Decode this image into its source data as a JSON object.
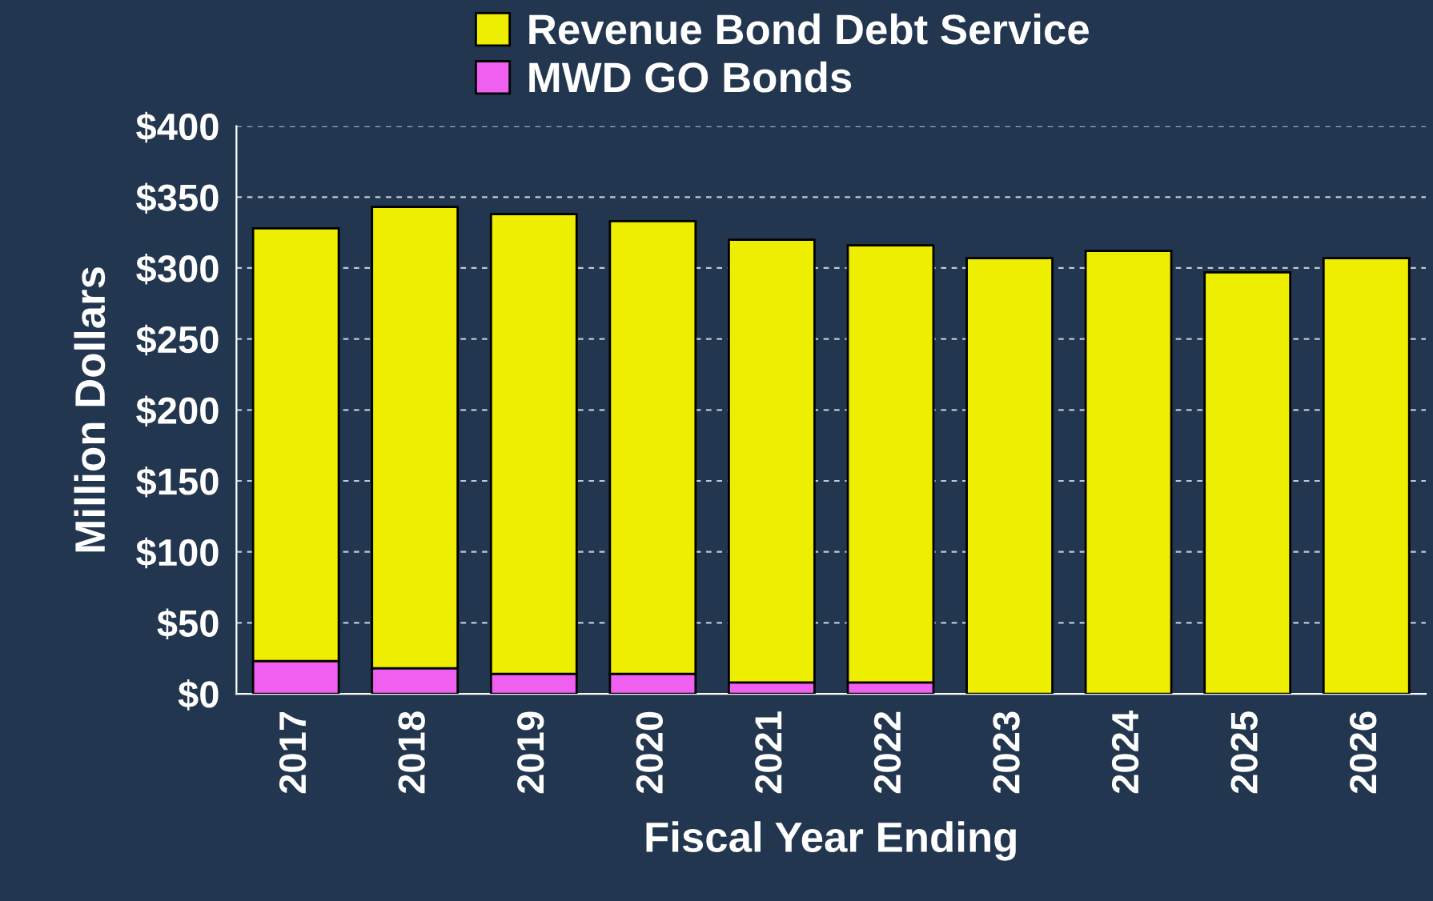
{
  "chart_data": {
    "type": "bar",
    "stacked": true,
    "xlabel": "Fiscal Year Ending",
    "ylabel": "Million Dollars",
    "categories": [
      "2017",
      "2018",
      "2019",
      "2020",
      "2021",
      "2022",
      "2023",
      "2024",
      "2025",
      "2026"
    ],
    "series": [
      {
        "name": "MWD GO Bonds",
        "color": "#f060f0",
        "values": [
          23,
          18,
          14,
          14,
          8,
          8,
          0,
          0,
          0,
          0
        ]
      },
      {
        "name": "Revenue Bond Debt Service",
        "color": "#eeee00",
        "values": [
          305,
          325,
          324,
          319,
          312,
          308,
          307,
          312,
          297,
          307
        ]
      }
    ],
    "ylim": [
      0,
      400
    ],
    "yticks": [
      {
        "value": 0,
        "label": "$0"
      },
      {
        "value": 50,
        "label": "$50"
      },
      {
        "value": 100,
        "label": "$100"
      },
      {
        "value": 150,
        "label": "$150"
      },
      {
        "value": 200,
        "label": "$200"
      },
      {
        "value": 250,
        "label": "$250"
      },
      {
        "value": 300,
        "label": "$300"
      },
      {
        "value": 350,
        "label": "$350"
      },
      {
        "value": 400,
        "label": "$400"
      }
    ],
    "grid": "y",
    "legend": "top"
  }
}
